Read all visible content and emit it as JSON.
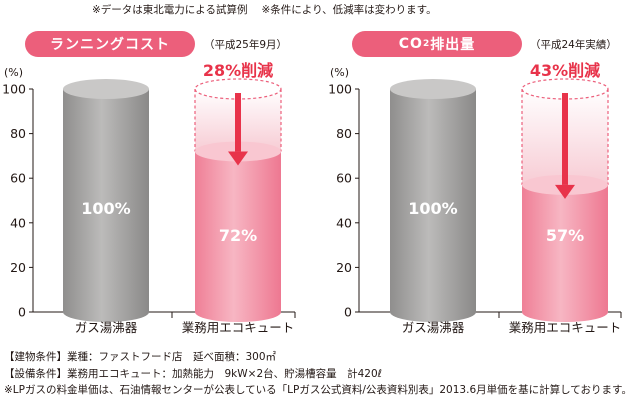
{
  "header": {
    "note_sample": "※データは東北電力による試算例",
    "note_conditions": "※条件により、低減率は変わります。"
  },
  "panels": [
    {
      "title": "ランニングコスト",
      "period": "（平成25年9月）"
    },
    {
      "title_prefix": "CO",
      "title_sub": "2",
      "title_suffix": "排出量",
      "period": "（平成24年実績）"
    }
  ],
  "colors": {
    "accent": "#ec5f7b",
    "reduction_text": "#e8334a",
    "gray_bar": "#9e9d9c",
    "pink_bar": "#f28fa3",
    "arrow": "#e8334a"
  },
  "chart_data": [
    {
      "type": "bar",
      "ylabel": "(%)",
      "ylim": [
        0,
        100
      ],
      "yticks": [
        0,
        20,
        40,
        60,
        80,
        100
      ],
      "categories": [
        "ガス湯沸器",
        "業務用エコキュート"
      ],
      "values": [
        100,
        72
      ],
      "value_labels": [
        "100%",
        "72%"
      ],
      "reduction_label": "28%削減"
    },
    {
      "type": "bar",
      "ylabel": "(%)",
      "ylim": [
        0,
        100
      ],
      "yticks": [
        0,
        20,
        40,
        60,
        80,
        100
      ],
      "categories": [
        "ガス湯沸器",
        "業務用エコキュート"
      ],
      "values": [
        100,
        57
      ],
      "value_labels": [
        "100%",
        "57%"
      ],
      "reduction_label": "43%削減"
    }
  ],
  "footer": {
    "line1": "【建物条件】業種：ファストフード店　延べ面積：300㎡",
    "line2": "【設備条件】業務用エコキュート：加熱能力　9kW×2台、貯湯槽容量　計420ℓ",
    "line3": "※LPガスの料金単価は、石油情報センターが公表している「LPガス公式資料/公表資料別表」2013.6月単価を基に計算しております。"
  }
}
